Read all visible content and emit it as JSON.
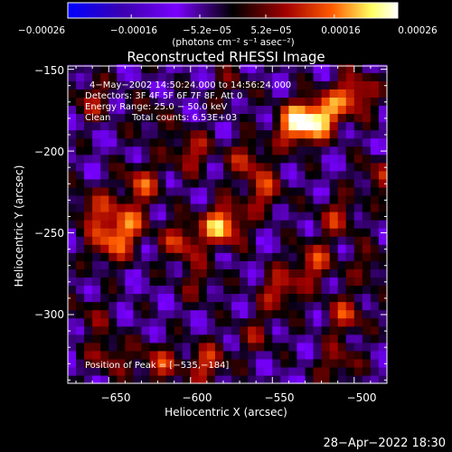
{
  "chart_data": {
    "type": "heatmap",
    "title": "Reconstructed RHESSI Image",
    "xlabel": "Heliocentric X (arcsec)",
    "ylabel": "Heliocentric Y (arcsec)",
    "xlim": [
      -675,
      -480
    ],
    "ylim": [
      -342,
      -148
    ],
    "x_ticks": [
      -650,
      -600,
      -550,
      -500
    ],
    "y_ticks": [
      -150,
      -200,
      -250,
      -300
    ],
    "x_tick_labels": [
      "−650",
      "−600",
      "−550",
      "−500"
    ],
    "y_tick_labels": [
      "−150",
      "−200",
      "−250",
      "−300"
    ],
    "colorbar": {
      "range": [
        -0.00026,
        0.00026
      ],
      "tick_values": [
        -0.00026,
        -0.00016,
        -5.2e-05,
        5.2e-05,
        0.00016,
        0.00026
      ],
      "tick_labels": [
        "−0.00026",
        "−0.00016",
        "−5.2e−05",
        "5.2e−05",
        "0.00016",
        "0.00026"
      ],
      "unit_label": "(photons cm⁻² s⁻¹ asec⁻²)",
      "colors": [
        "#0000ff",
        "#3c00b0",
        "#7a00ff",
        "#000000",
        "#a00000",
        "#ff5a00",
        "#ffff60",
        "#ffffff"
      ]
    },
    "annotations": {
      "line1": "4−May−2002 14:50:24.000 to 14:56:24.000",
      "line2": "Detectors: 3F 4F 5F 6F 7F 8F, Att 0",
      "line3": "Energy Range: 25.0 − 50.0 keV",
      "line4_left": "Clean",
      "line4_right": "Total counts: 6.53E+03",
      "peak": "Position of Peak = [−535,−184]"
    },
    "peak_position": [
      -535,
      -184
    ],
    "sources": [
      {
        "x": -535,
        "y": -184,
        "value": 1.0
      },
      {
        "x": -520,
        "y": -178,
        "value": 0.85
      },
      {
        "x": -500,
        "y": -165,
        "value": 0.75
      },
      {
        "x": -580,
        "y": -245,
        "value": 0.95
      },
      {
        "x": -605,
        "y": -255,
        "value": 0.6
      },
      {
        "x": -555,
        "y": -225,
        "value": 0.55
      },
      {
        "x": -600,
        "y": -200,
        "value": 0.55
      },
      {
        "x": -565,
        "y": -205,
        "value": 0.5
      },
      {
        "x": -630,
        "y": -220,
        "value": 0.6
      },
      {
        "x": -640,
        "y": -245,
        "value": 0.7
      },
      {
        "x": -650,
        "y": -258,
        "value": 0.55
      },
      {
        "x": -660,
        "y": -235,
        "value": 0.5
      },
      {
        "x": -660,
        "y": -168,
        "value": 0.45
      },
      {
        "x": -510,
        "y": -240,
        "value": 0.5
      },
      {
        "x": -525,
        "y": -268,
        "value": 0.6
      },
      {
        "x": -545,
        "y": -285,
        "value": 0.6
      },
      {
        "x": -505,
        "y": -300,
        "value": 0.55
      },
      {
        "x": -560,
        "y": -312,
        "value": 0.35
      },
      {
        "x": -590,
        "y": -330,
        "value": 0.6
      },
      {
        "x": -620,
        "y": -330,
        "value": 0.55
      },
      {
        "x": -650,
        "y": -325,
        "value": 0.45
      },
      {
        "x": -510,
        "y": -330,
        "value": 0.45
      },
      {
        "x": -595,
        "y": -280,
        "value": 0.35
      },
      {
        "x": -660,
        "y": -300,
        "value": 0.3
      },
      {
        "x": -485,
        "y": -215,
        "value": 0.45
      },
      {
        "x": -490,
        "y": -270,
        "value": 0.35
      },
      {
        "x": -625,
        "y": -180,
        "value": 0.3
      },
      {
        "x": -575,
        "y": -160,
        "value": 0.3
      }
    ]
  },
  "footer": {
    "timestamp": "28−Apr−2022 18:30"
  }
}
